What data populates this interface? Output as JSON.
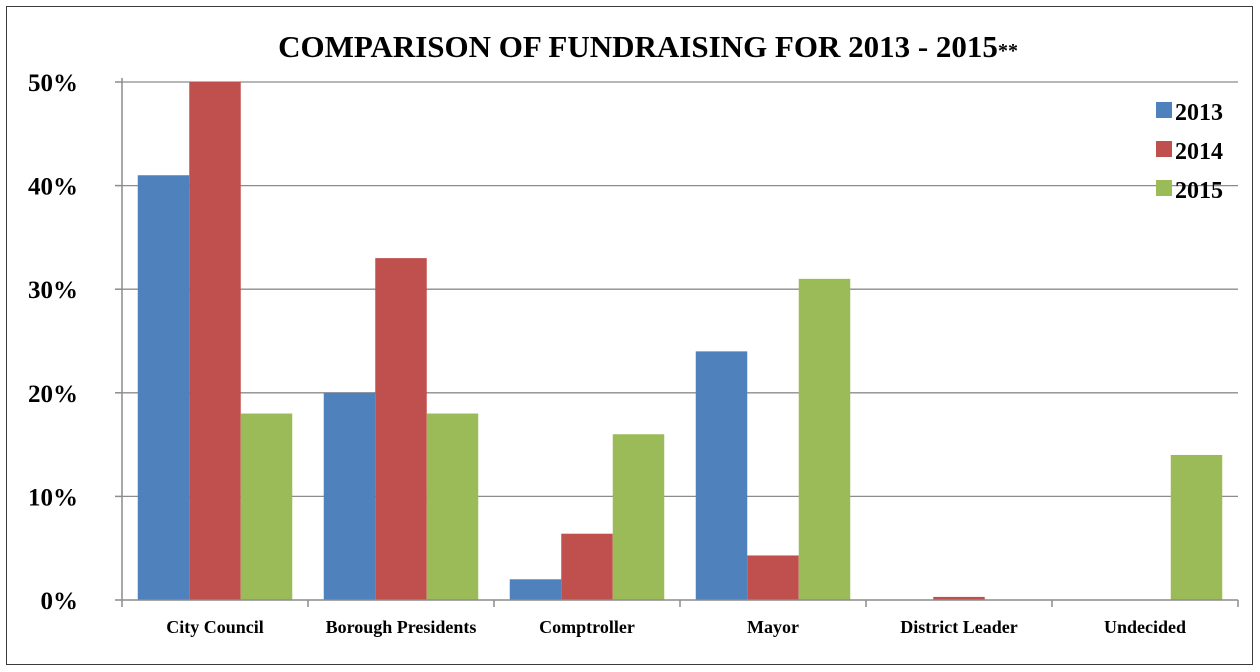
{
  "chart_data": {
    "type": "bar",
    "title": "COMPARISON OF FUNDRAISING FOR 2013 - 2015",
    "title_suffix": "**",
    "xlabel": "",
    "ylabel": "",
    "categories": [
      "City Council",
      "Borough Presidents",
      "Comptroller",
      "Mayor",
      "District Leader",
      "Undecided"
    ],
    "series": [
      {
        "name": "2013",
        "color": "#4f81bd",
        "values": [
          41,
          20,
          2,
          24,
          0,
          0
        ]
      },
      {
        "name": "2014",
        "color": "#c0504d",
        "values": [
          50,
          33,
          6.4,
          4.3,
          0.3,
          0
        ]
      },
      {
        "name": "2015",
        "color": "#9bbb59",
        "values": [
          18,
          18,
          16,
          31,
          0,
          14
        ]
      }
    ],
    "ylim": [
      0,
      50
    ],
    "yticks": [
      0,
      10,
      20,
      30,
      40,
      50
    ],
    "ytick_labels": [
      "0%",
      "10%",
      "20%",
      "30%",
      "40%",
      "50%"
    ],
    "grid": true,
    "legend_position": "top-right"
  }
}
